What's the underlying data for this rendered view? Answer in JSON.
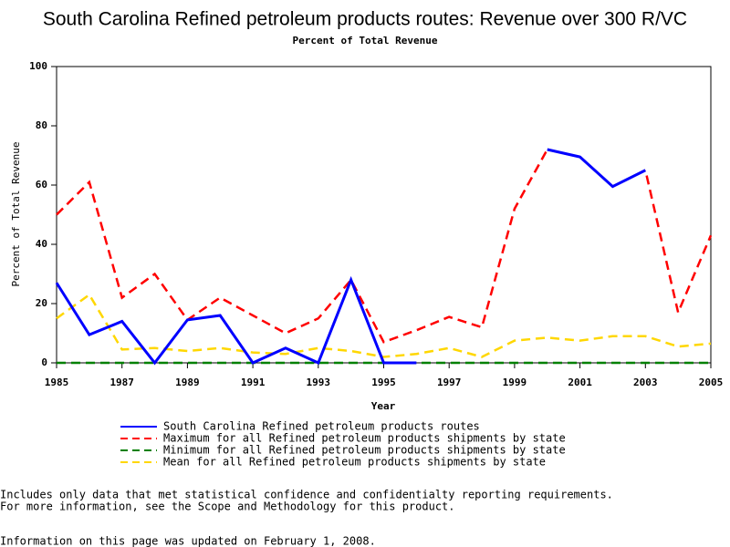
{
  "chart_data": {
    "type": "line",
    "title": "South Carolina Refined petroleum products routes: Revenue over 300 R/VC",
    "subtitle": "Percent of Total Revenue",
    "x_label": "Year",
    "y_label": "Percent of Total Revenue",
    "x": [
      1985,
      1986,
      1987,
      1988,
      1989,
      1990,
      1991,
      1992,
      1993,
      1994,
      1995,
      1996,
      1997,
      1998,
      1999,
      2000,
      2001,
      2002,
      2003,
      2004,
      2005
    ],
    "xlim": [
      1985,
      2005
    ],
    "xticks": [
      1985,
      1987,
      1989,
      1991,
      1993,
      1995,
      1997,
      1999,
      2001,
      2003,
      2005
    ],
    "ylim": [
      0,
      100
    ],
    "yticks": [
      0,
      20,
      40,
      60,
      80,
      100
    ],
    "series": [
      {
        "name": "South Carolina Refined petroleum products routes",
        "color": "#0000ff",
        "style": "solid",
        "values": [
          27,
          9.5,
          14,
          0,
          14.5,
          16,
          0,
          5,
          0,
          28,
          0,
          0,
          null,
          null,
          null,
          72,
          69.5,
          59.5,
          65,
          null,
          null
        ]
      },
      {
        "name": "Maximum for all Refined petroleum products shipments by state",
        "color": "#ff0000",
        "style": "dashed",
        "values": [
          50,
          61,
          22,
          30,
          14.5,
          22,
          16,
          10,
          15,
          28,
          7,
          11,
          15.5,
          12,
          52,
          72,
          69.5,
          59.5,
          65,
          17,
          43
        ]
      },
      {
        "name": "Minimum for all Refined petroleum products shipments by state",
        "color": "#008000",
        "style": "dashed",
        "values": [
          0,
          0,
          0,
          0,
          0,
          0,
          0,
          0,
          0,
          0,
          0,
          0,
          0,
          0,
          0,
          0,
          0,
          0,
          0,
          0,
          0
        ]
      },
      {
        "name": "Mean for all Refined petroleum products shipments by state",
        "color": "#ffd700",
        "style": "dashed",
        "values": [
          15,
          23,
          4.5,
          5,
          4,
          5,
          3.5,
          3,
          5,
          4,
          2,
          3,
          5,
          2,
          7.5,
          8.5,
          7.5,
          9,
          9,
          5.5,
          6.5
        ]
      }
    ],
    "footnotes": [
      "Includes only data that met statistical confidence and confidentialty reporting requirements.",
      "For more information, see the Scope and Methodology for this product.",
      "Information on this page was updated on February 1, 2008."
    ]
  }
}
